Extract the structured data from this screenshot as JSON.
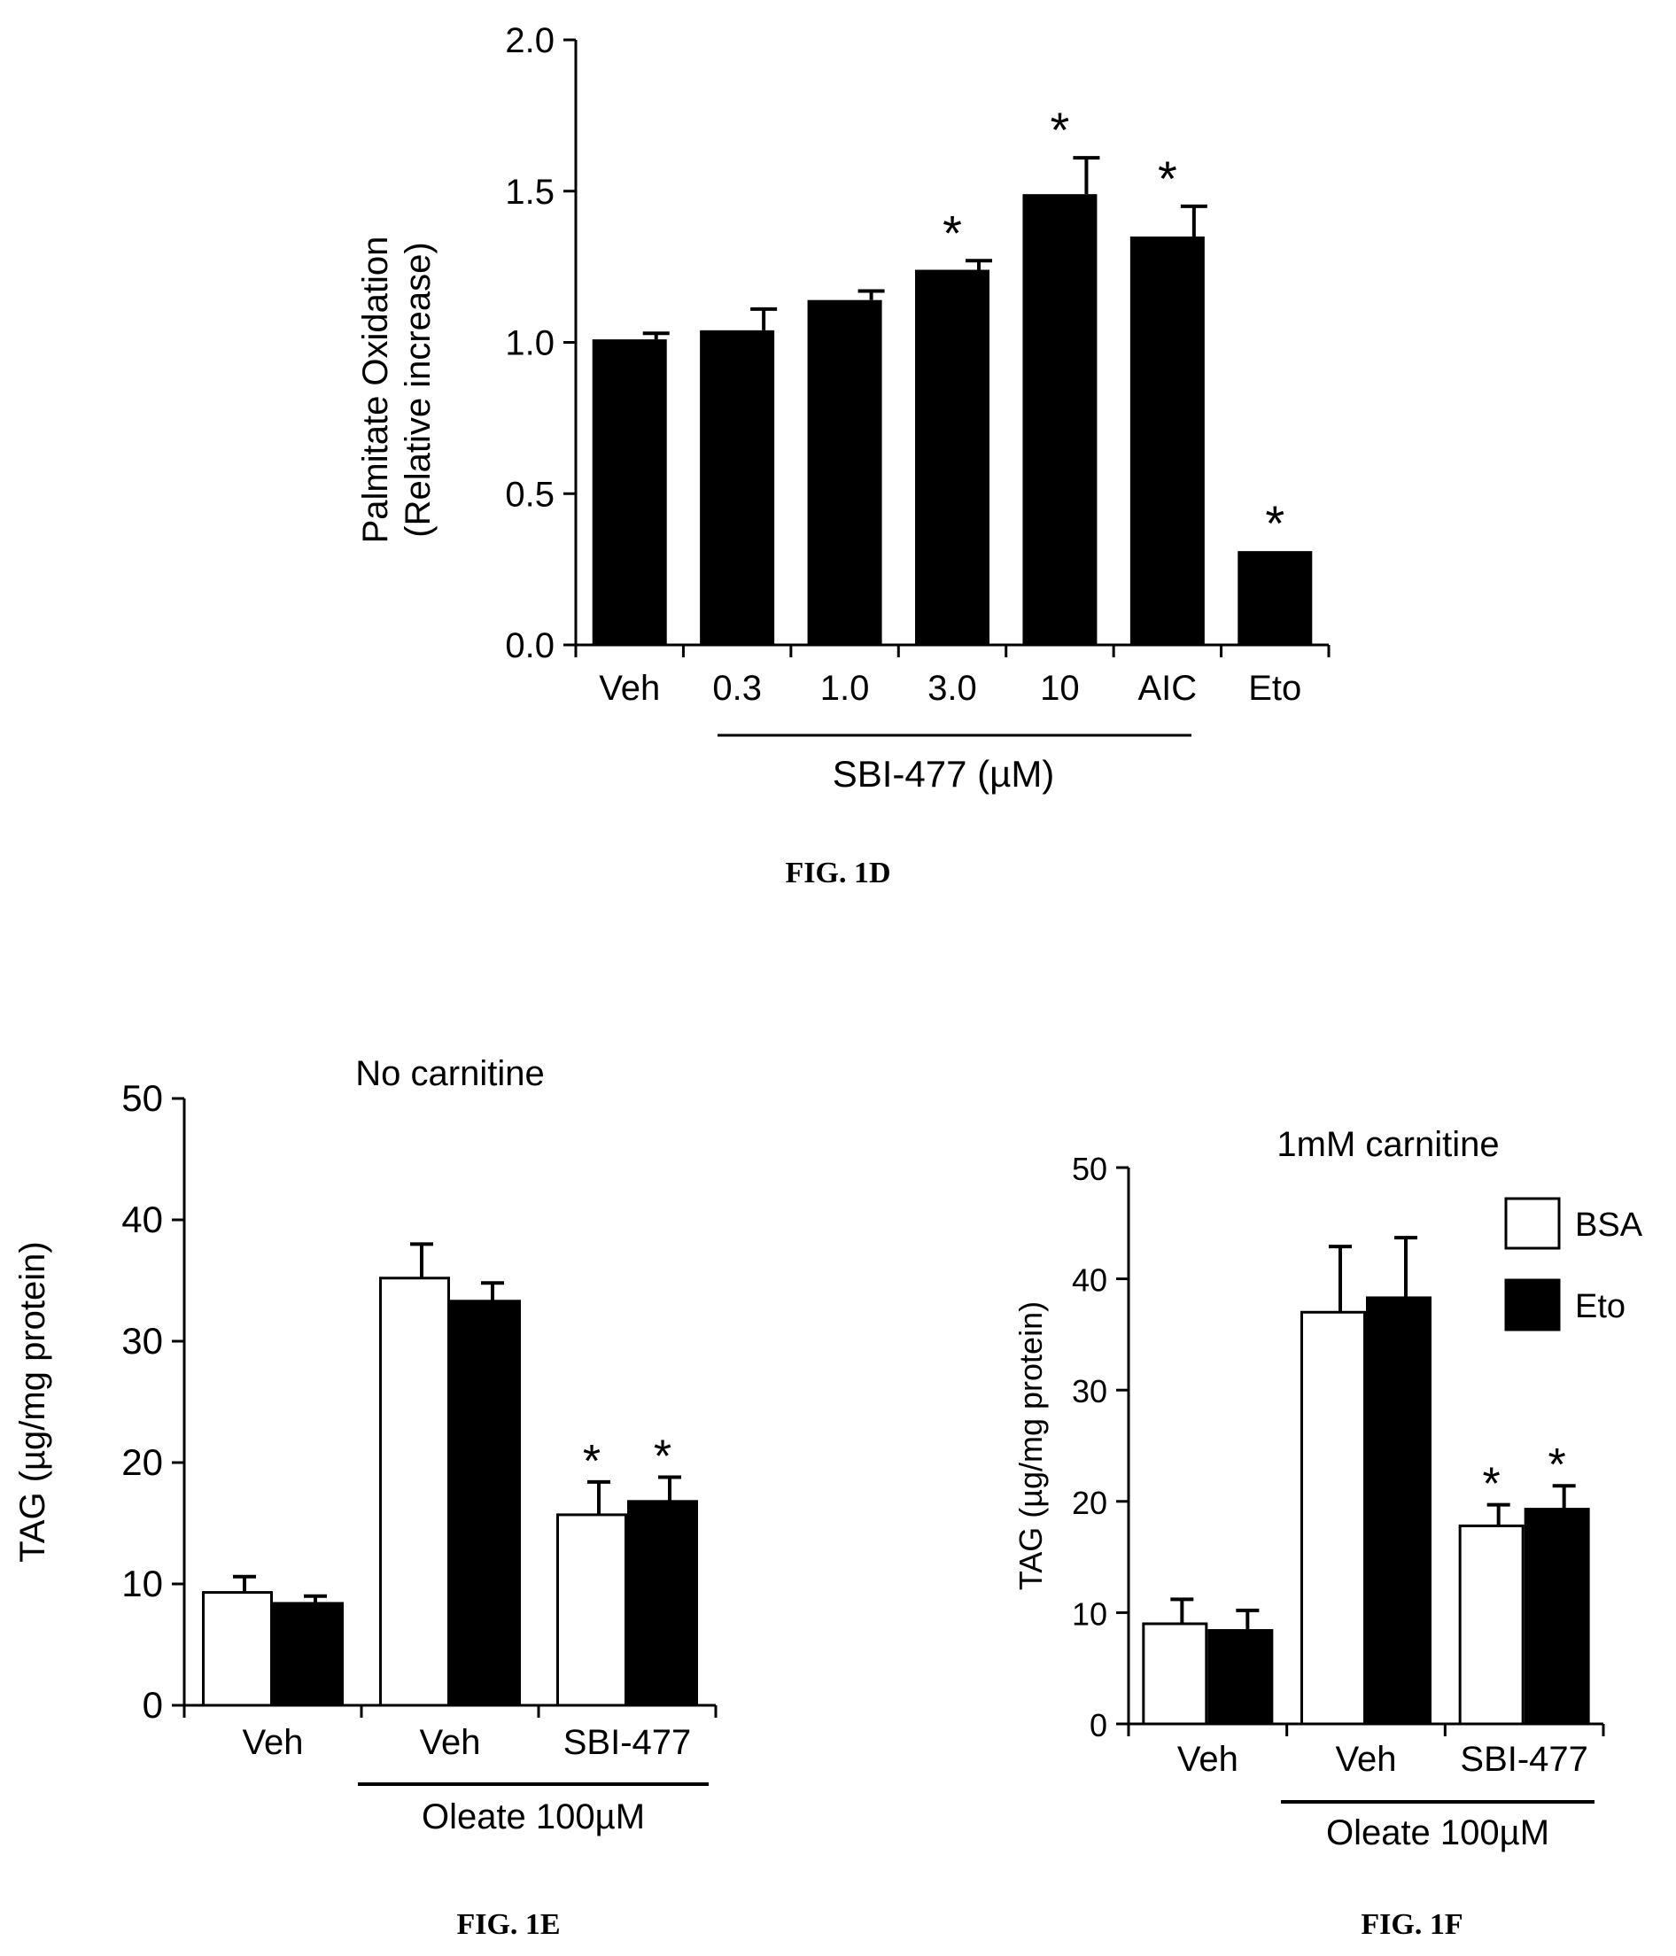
{
  "figure_captions": {
    "d": "FIG. 1D",
    "e": "FIG. 1E",
    "f": "FIG. 1F"
  },
  "chart_data": [
    {
      "id": "1D",
      "type": "bar",
      "title": "",
      "ylabel": [
        "Palmitate Oxidation",
        "(Relative increase)"
      ],
      "ylim": [
        0,
        2.0
      ],
      "yticks": [
        "0.0",
        "0.5",
        "1.0",
        "1.5",
        "2.0"
      ],
      "categories": [
        "Veh",
        "0.3",
        "1.0",
        "3.0",
        "10",
        "AIC",
        "Eto"
      ],
      "values": [
        1.01,
        1.04,
        1.14,
        1.24,
        1.49,
        1.35,
        0.31
      ],
      "errors": [
        0.02,
        0.07,
        0.03,
        0.03,
        0.12,
        0.1,
        0.0
      ],
      "significant": [
        false,
        false,
        false,
        true,
        true,
        true,
        true
      ],
      "group_label": "SBI-477 (µM)",
      "bar_color": "#000000"
    },
    {
      "id": "1E",
      "type": "bar",
      "title": "No carnitine",
      "ylabel": "TAG (µg/mg protein)",
      "ylim": [
        0,
        50
      ],
      "yticks": [
        "0",
        "10",
        "20",
        "30",
        "40",
        "50"
      ],
      "categories": [
        "Veh",
        "Veh",
        "SBI-477"
      ],
      "group_label": "Oleate 100µM",
      "series": [
        {
          "values": [
            9.3,
            35.2,
            15.7
          ],
          "errors": [
            1.3,
            2.8,
            2.7
          ],
          "significant": [
            false,
            false,
            true
          ],
          "fill": "#ffffff"
        },
        {
          "values": [
            8.4,
            33.3,
            16.8
          ],
          "errors": [
            0.6,
            1.5,
            2.0
          ],
          "significant": [
            false,
            false,
            true
          ],
          "fill": "#000000"
        }
      ]
    },
    {
      "id": "1F",
      "type": "bar",
      "title": "1mM carnitine",
      "ylabel": "TAG (µg/mg protein)",
      "ylim": [
        0,
        50
      ],
      "yticks": [
        "0",
        "10",
        "20",
        "30",
        "40",
        "50"
      ],
      "categories": [
        "Veh",
        "Veh",
        "SBI-477"
      ],
      "group_label": "Oleate 100µM",
      "series": [
        {
          "name": "BSA",
          "values": [
            9.0,
            37.0,
            17.8
          ],
          "errors": [
            2.2,
            5.9,
            1.9
          ],
          "significant": [
            false,
            false,
            true
          ],
          "fill": "#ffffff"
        },
        {
          "name": "Eto",
          "values": [
            8.4,
            38.3,
            19.3
          ],
          "errors": [
            1.8,
            5.4,
            2.1
          ],
          "significant": [
            false,
            false,
            true
          ],
          "fill": "#000000"
        }
      ]
    }
  ]
}
